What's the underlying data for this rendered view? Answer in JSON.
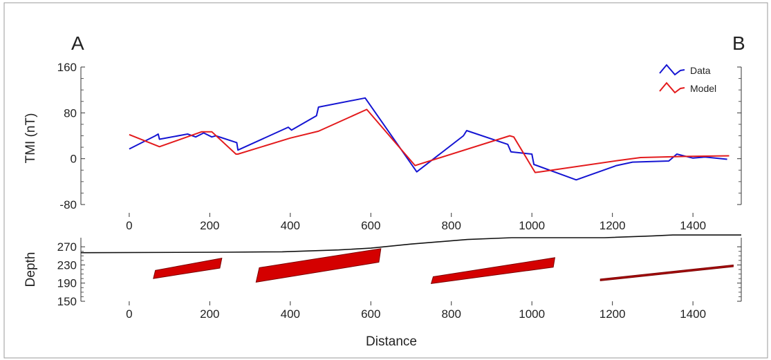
{
  "corner_labels": {
    "left": "A",
    "right": "B"
  },
  "chart_data": [
    {
      "type": "line",
      "title": "",
      "xlabel": "",
      "ylabel": "TMI (nT)",
      "xlim": [
        -120,
        1520
      ],
      "ylim": [
        -80,
        160
      ],
      "xticks": [
        0,
        200,
        400,
        600,
        800,
        1000,
        1200,
        1400
      ],
      "yticks": [
        -80,
        0,
        80,
        160
      ],
      "legend_position": "top-right",
      "series": [
        {
          "name": "Data",
          "color": "#1414d2",
          "points": [
            [
              0,
              17
            ],
            [
              65,
              40
            ],
            [
              72,
              43
            ],
            [
              75,
              34
            ],
            [
              145,
              43
            ],
            [
              165,
              38
            ],
            [
              185,
              45
            ],
            [
              205,
              38
            ],
            [
              215,
              40
            ],
            [
              267,
              28
            ],
            [
              270,
              15
            ],
            [
              395,
              55
            ],
            [
              403,
              50
            ],
            [
              465,
              75
            ],
            [
              470,
              90
            ],
            [
              586,
              106
            ],
            [
              714,
              -23
            ],
            [
              830,
              40
            ],
            [
              838,
              49
            ],
            [
              940,
              25
            ],
            [
              948,
              12
            ],
            [
              1000,
              8
            ],
            [
              1005,
              -10
            ],
            [
              1110,
              -37
            ],
            [
              1210,
              -12
            ],
            [
              1250,
              -6
            ],
            [
              1340,
              -4
            ],
            [
              1360,
              8
            ],
            [
              1400,
              1
            ],
            [
              1430,
              3
            ],
            [
              1485,
              -1
            ]
          ]
        },
        {
          "name": "Model",
          "color": "#e31a1c",
          "points": [
            [
              0,
              42
            ],
            [
              75,
              21
            ],
            [
              180,
              47
            ],
            [
              205,
              47
            ],
            [
              265,
              8
            ],
            [
              270,
              8
            ],
            [
              400,
              36
            ],
            [
              470,
              48
            ],
            [
              590,
              86
            ],
            [
              710,
              -12
            ],
            [
              945,
              40
            ],
            [
              955,
              38
            ],
            [
              1008,
              -24
            ],
            [
              1020,
              -23
            ],
            [
              1215,
              -3
            ],
            [
              1270,
              2
            ],
            [
              1380,
              4
            ],
            [
              1490,
              5
            ]
          ]
        }
      ]
    },
    {
      "type": "area",
      "title": "",
      "xlabel": "Distance",
      "ylabel": "Depth",
      "xlim": [
        -120,
        1520
      ],
      "ylim": [
        150,
        290
      ],
      "xticks": [
        0,
        200,
        400,
        600,
        800,
        1000,
        1200,
        1400
      ],
      "yticks": [
        150,
        190,
        230,
        270
      ],
      "series": [
        {
          "name": "",
          "color": "#111111",
          "points": [
            [
              -120,
              257
            ],
            [
              240,
              258
            ],
            [
              380,
              259
            ],
            [
              520,
              263
            ],
            [
              600,
              267
            ],
            [
              700,
              276
            ],
            [
              840,
              286
            ],
            [
              950,
              290
            ],
            [
              1040,
              290
            ],
            [
              1180,
              290
            ],
            [
              1300,
              294
            ],
            [
              1350,
              296
            ],
            [
              1520,
              296
            ]
          ]
        }
      ],
      "bodies": [
        {
          "color": "#d40000",
          "polygon": [
            [
              60,
              200
            ],
            [
              225,
              223
            ],
            [
              230,
              245
            ],
            [
              65,
              218
            ]
          ]
        },
        {
          "color": "#d40000",
          "polygon": [
            [
              315,
              192
            ],
            [
              620,
              236
            ],
            [
              625,
              266
            ],
            [
              323,
              224
            ]
          ]
        },
        {
          "color": "#d40000",
          "polygon": [
            [
              750,
              189
            ],
            [
              1053,
              225
            ],
            [
              1057,
              246
            ],
            [
              755,
              204
            ]
          ]
        },
        {
          "color": "#aa0e0e",
          "polygon": [
            [
              1170,
              195
            ],
            [
              1500,
              226
            ],
            [
              1500,
              230
            ],
            [
              1170,
              199
            ]
          ]
        }
      ]
    }
  ]
}
